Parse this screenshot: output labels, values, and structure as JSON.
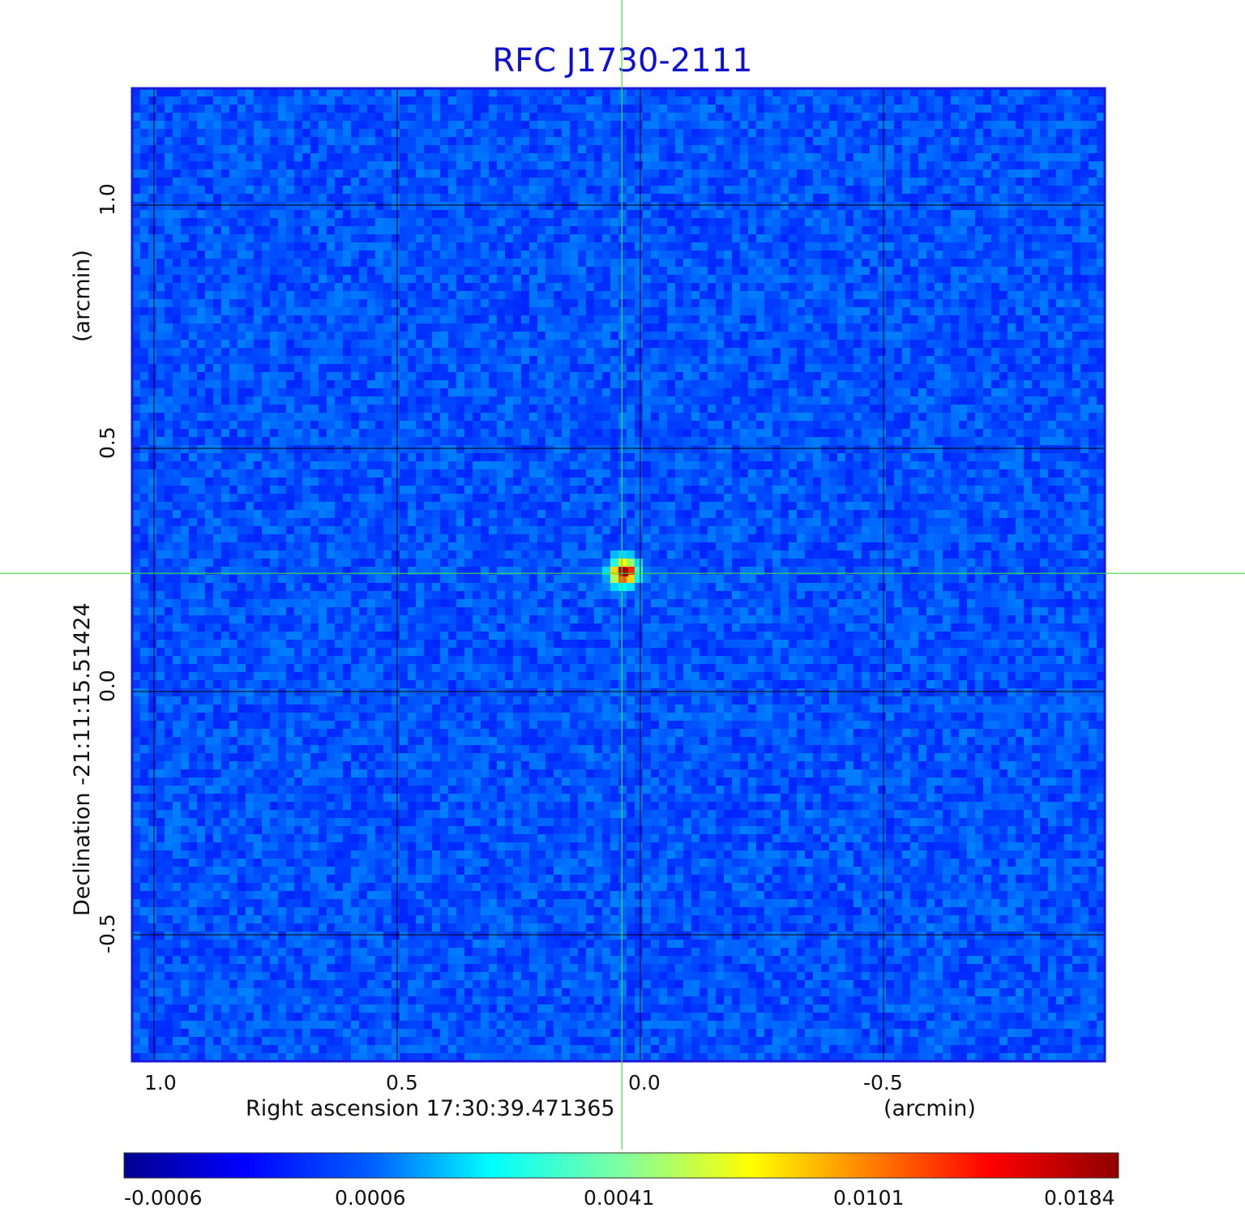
{
  "chart_data": {
    "type": "heatmap",
    "title": "RFC J1730-2111",
    "xlabel": "Right ascension  17:30:39.471365",
    "xunit": "(arcmin)",
    "ylabel": "Declination  -21:11:15.51424",
    "yunit": "(arcmin)",
    "x_ticks": [
      "1.0",
      "0.5",
      "0.0",
      "-0.5"
    ],
    "x_tick_values": [
      1.0,
      0.5,
      0.0,
      -0.5
    ],
    "y_ticks": [
      "1.0",
      "0.5",
      "0.0",
      "-0.5"
    ],
    "y_tick_values": [
      1.0,
      0.5,
      0.0,
      -0.5
    ],
    "xlim": [
      1.045,
      -0.955
    ],
    "ylim": [
      -0.76,
      1.24
    ],
    "grid": true,
    "crosshair": {
      "x": 0.038,
      "y": 0.243,
      "color": "#44dd44"
    },
    "source": {
      "x": 0.033,
      "y": 0.245,
      "peak": 0.0184
    },
    "colormap": "jet",
    "colorbar": {
      "labels": [
        "-0.0006",
        "0.0006",
        "0.0041",
        "0.0101",
        "0.0184"
      ],
      "range": [
        -0.0006,
        0.0184
      ]
    },
    "colors": {
      "title": "#1010d0",
      "frame": "#1a1ad8",
      "background_map": "#1560f0"
    }
  }
}
